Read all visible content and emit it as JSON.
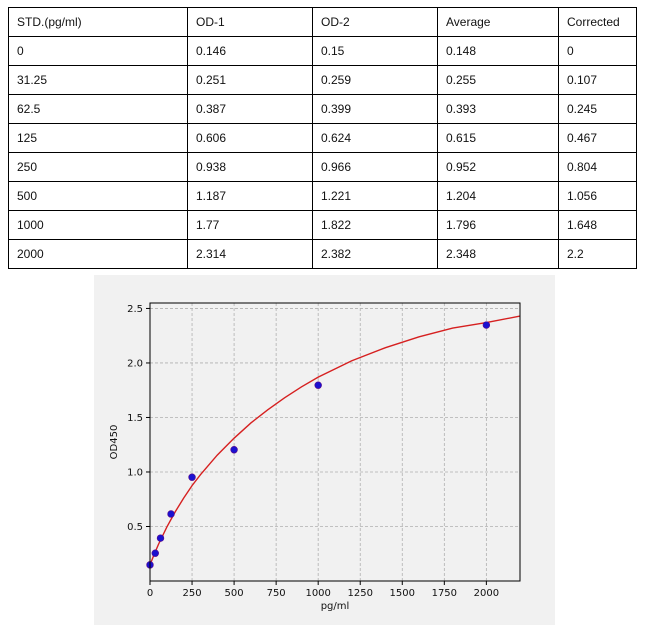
{
  "table": {
    "headers": [
      "STD.(pg/ml)",
      "OD-1",
      "OD-2",
      "Average",
      "Corrected"
    ],
    "rows": [
      [
        "0",
        "0.146",
        "0.15",
        "0.148",
        "0"
      ],
      [
        "31.25",
        "0.251",
        "0.259",
        "0.255",
        "0.107"
      ],
      [
        "62.5",
        "0.387",
        "0.399",
        "0.393",
        "0.245"
      ],
      [
        "125",
        "0.606",
        "0.624",
        "0.615",
        "0.467"
      ],
      [
        "250",
        "0.938",
        "0.966",
        "0.952",
        "0.804"
      ],
      [
        "500",
        "1.187",
        "1.221",
        "1.204",
        "1.056"
      ],
      [
        "1000",
        "1.77",
        "1.822",
        "1.796",
        "1.648"
      ],
      [
        "2000",
        "2.314",
        "2.382",
        "2.348",
        "2.2"
      ]
    ]
  },
  "chart_data": {
    "type": "scatter",
    "title": "",
    "xlabel": "pg/ml",
    "ylabel": "OD450",
    "xlim": [
      0,
      2200
    ],
    "ylim": [
      0,
      2.55
    ],
    "x_ticks": [
      0,
      250,
      500,
      750,
      1000,
      1250,
      1500,
      1750,
      2000
    ],
    "y_ticks": [
      0.5,
      1.0,
      1.5,
      2.0,
      2.5
    ],
    "x_tick_labels": [
      "0",
      "250",
      "500",
      "750",
      "1000",
      "1250",
      "1500",
      "1750",
      "2000"
    ],
    "y_tick_labels": [
      "0.5",
      "1.0",
      "1.5",
      "2.0",
      "2.5"
    ],
    "grid": true,
    "points": {
      "x": [
        0,
        31.25,
        62.5,
        125,
        250,
        500,
        1000,
        2000
      ],
      "y": [
        0.148,
        0.255,
        0.393,
        0.615,
        0.952,
        1.204,
        1.796,
        2.348
      ]
    },
    "fit_curve": {
      "x": [
        0,
        25,
        50,
        100,
        150,
        200,
        250,
        300,
        400,
        500,
        600,
        700,
        800,
        900,
        1000,
        1200,
        1400,
        1600,
        1800,
        2000,
        2200
      ],
      "y": [
        0.148,
        0.245,
        0.335,
        0.495,
        0.635,
        0.76,
        0.875,
        0.975,
        1.155,
        1.31,
        1.45,
        1.57,
        1.68,
        1.78,
        1.87,
        2.02,
        2.14,
        2.24,
        2.32,
        2.37,
        2.43
      ]
    },
    "colors": {
      "points": "#1a10d0",
      "curve": "#d62020",
      "grid": "#b0b0b0"
    }
  }
}
